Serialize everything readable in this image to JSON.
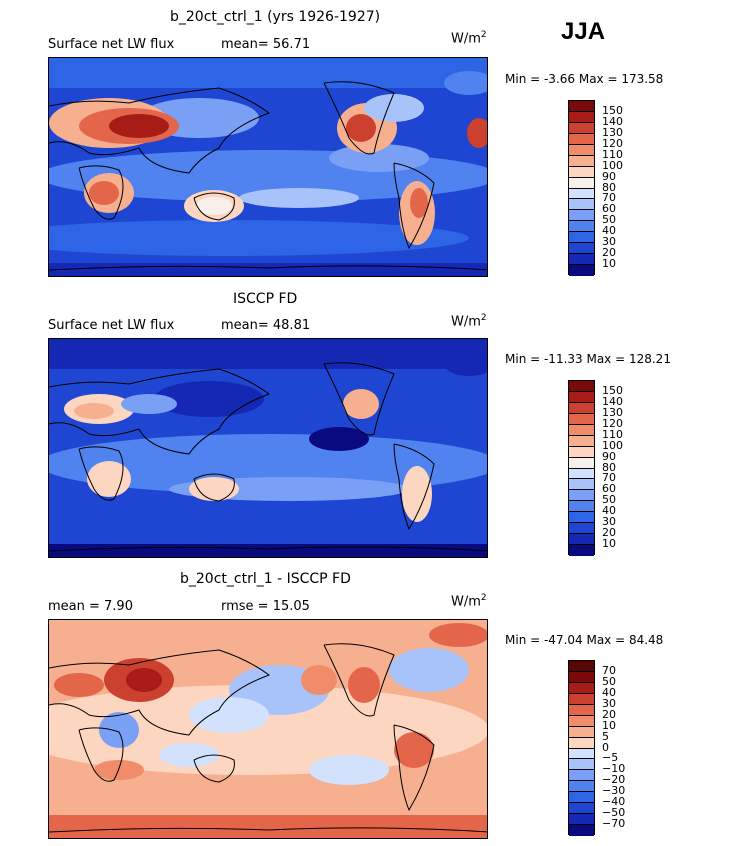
{
  "season": "JJA",
  "units_base": "W/m",
  "units_exp": "2",
  "panels": [
    {
      "title": "b_20ct_ctrl_1 (yrs 1926-1927)",
      "left_text": "Surface net LW flux",
      "stat_text": "mean=   56.71",
      "minmax": "Min =   -3.66 Max = 173.58",
      "colorbar_labels": [
        "150",
        "140",
        "130",
        "120",
        "110",
        "100",
        "90",
        "80",
        "70",
        "60",
        "50",
        "40",
        "30",
        "20",
        "10"
      ]
    },
    {
      "title": "ISCCP FD",
      "left_text": "Surface net LW flux",
      "stat_text": "mean=   48.81",
      "minmax": "Min = -11.33 Max = 128.21",
      "colorbar_labels": [
        "150",
        "140",
        "130",
        "120",
        "110",
        "100",
        "90",
        "80",
        "70",
        "60",
        "50",
        "40",
        "30",
        "20",
        "10"
      ]
    },
    {
      "title": "b_20ct_ctrl_1 - ISCCP FD",
      "left_text": "mean =    7.90",
      "stat_text": "rmse =   15.05",
      "minmax": "Min = -47.04 Max =  84.48",
      "colorbar_labels": [
        "70",
        "50",
        "40",
        "30",
        "20",
        "10",
        "5",
        "0",
        "−5",
        "−10",
        "−20",
        "−30",
        "−40",
        "−50",
        "−70"
      ]
    }
  ],
  "colors": {
    "full_field": [
      "#0a0a80",
      "#1428b4",
      "#1e46d2",
      "#2e64e6",
      "#5082f0",
      "#7aa0f6",
      "#a8c2fa",
      "#d2e2fc",
      "#f8f0ea",
      "#fcd6c0",
      "#f6b090",
      "#f08c6a",
      "#e4664a",
      "#cc4030",
      "#a81c18",
      "#7a0a0a"
    ],
    "difference": [
      "#0a0a80",
      "#1428b4",
      "#1e46d2",
      "#2e64e6",
      "#5082f0",
      "#7aa0f6",
      "#a8c2fa",
      "#d2e2fc",
      "#fcd6c0",
      "#f6b090",
      "#f08c6a",
      "#e4664a",
      "#cc4030",
      "#a81c18",
      "#7a0a0a",
      "#5a0606"
    ]
  }
}
